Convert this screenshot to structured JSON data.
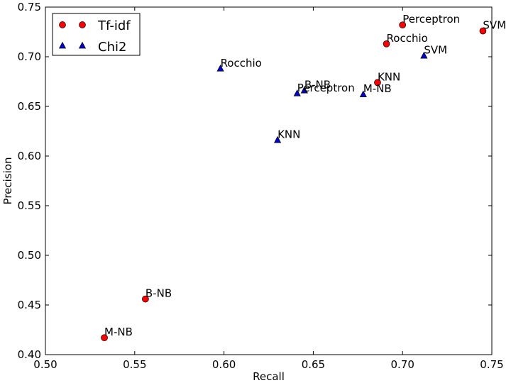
{
  "chart_data": {
    "type": "scatter",
    "title": "",
    "xlabel": "Recall",
    "ylabel": "Precision",
    "xlim": [
      0.5,
      0.75
    ],
    "ylim": [
      0.4,
      0.75
    ],
    "xticks": [
      "0.50",
      "0.55",
      "0.60",
      "0.65",
      "0.70",
      "0.75"
    ],
    "yticks": [
      "0.40",
      "0.45",
      "0.50",
      "0.55",
      "0.60",
      "0.65",
      "0.70",
      "0.75"
    ],
    "grid": false,
    "legend_position": "top-left",
    "series": [
      {
        "name": "Tf-idf",
        "marker": "circle",
        "color": "#ff0000",
        "points": [
          {
            "label": "SVM",
            "x": 0.745,
            "y": 0.726
          },
          {
            "label": "Perceptron",
            "x": 0.7,
            "y": 0.732
          },
          {
            "label": "Rocchio",
            "x": 0.691,
            "y": 0.713
          },
          {
            "label": "KNN",
            "x": 0.686,
            "y": 0.674
          },
          {
            "label": "B-NB",
            "x": 0.556,
            "y": 0.456
          },
          {
            "label": "M-NB",
            "x": 0.533,
            "y": 0.417
          }
        ]
      },
      {
        "name": "Chi2",
        "marker": "triangle",
        "color": "#0000cc",
        "points": [
          {
            "label": "SVM",
            "x": 0.712,
            "y": 0.701
          },
          {
            "label": "Rocchio",
            "x": 0.598,
            "y": 0.688
          },
          {
            "label": "B-NB",
            "x": 0.645,
            "y": 0.666
          },
          {
            "label": "Perceptron",
            "x": 0.641,
            "y": 0.663
          },
          {
            "label": "M-NB",
            "x": 0.678,
            "y": 0.662
          },
          {
            "label": "KNN",
            "x": 0.63,
            "y": 0.616
          }
        ]
      }
    ]
  }
}
